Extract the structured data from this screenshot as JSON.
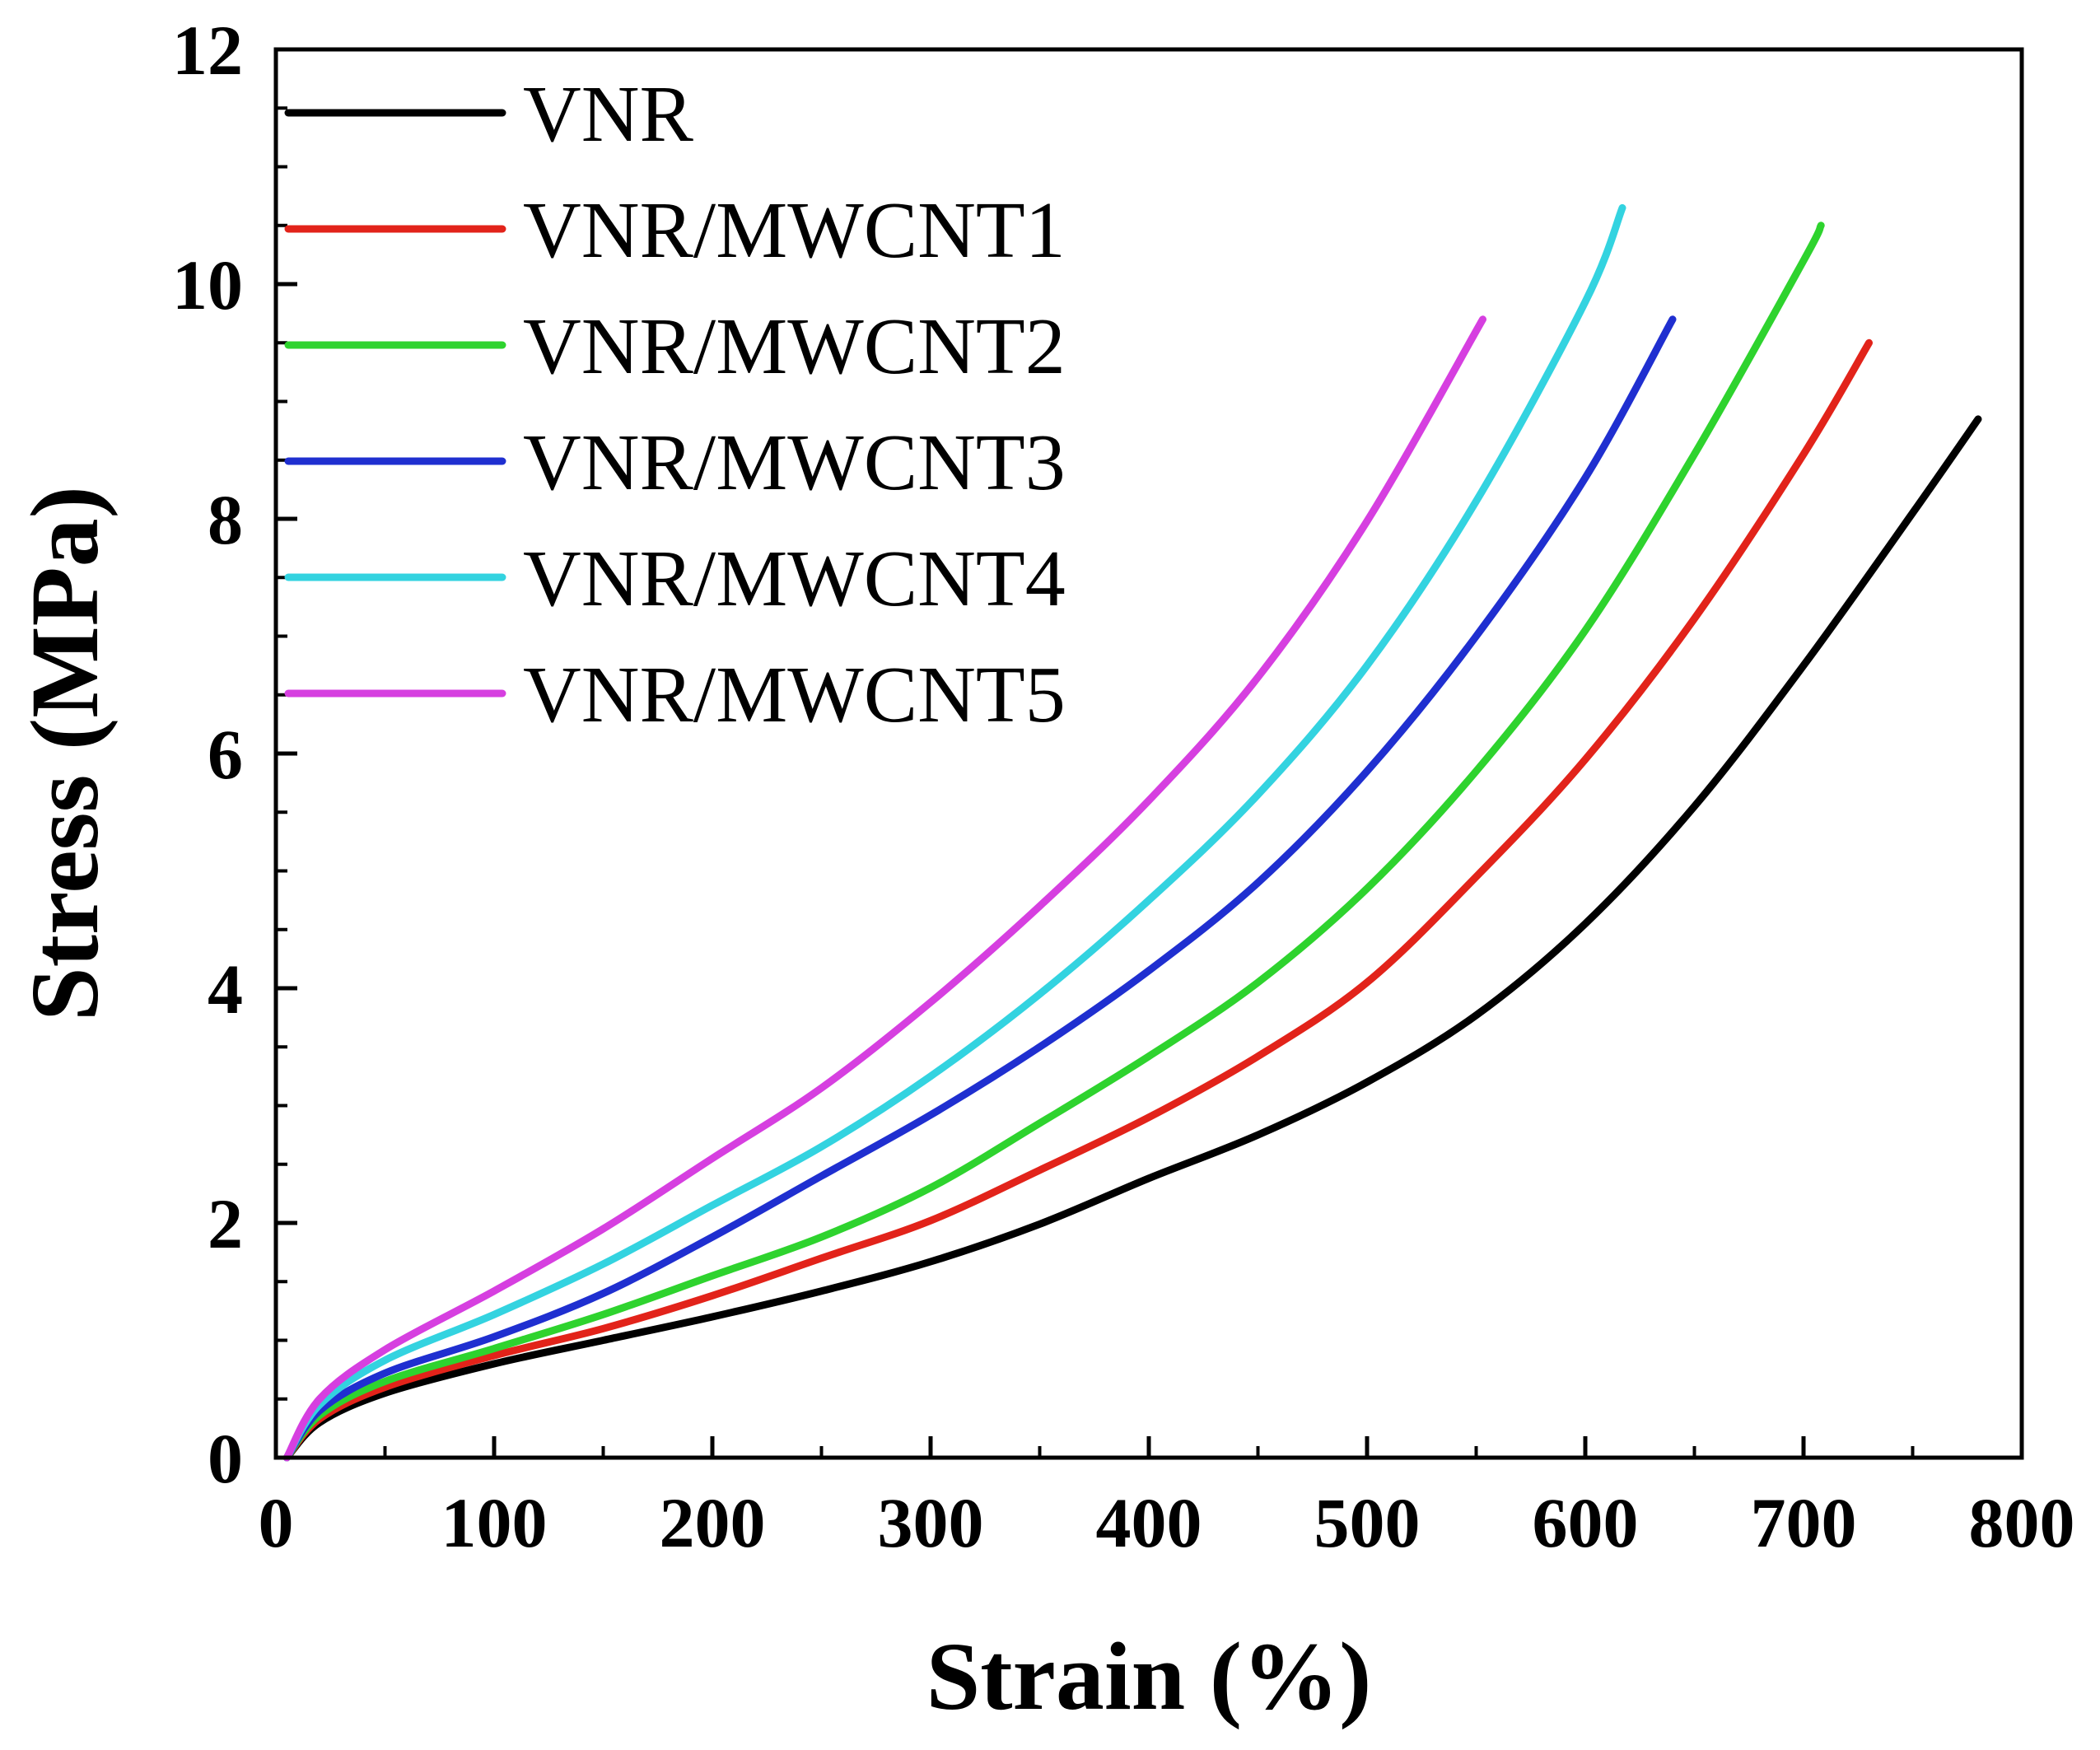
{
  "chart_data": {
    "type": "line",
    "title": "",
    "xlabel": "Strain (%)",
    "ylabel": "Stress (MPa)",
    "xlim": [
      0,
      800
    ],
    "ylim": [
      0,
      12
    ],
    "xticks": [
      0,
      100,
      200,
      300,
      400,
      500,
      600,
      700,
      800
    ],
    "yticks": [
      0,
      2,
      4,
      6,
      8,
      10,
      12
    ],
    "grid": false,
    "legend_position": "top-left",
    "series": [
      {
        "name": "VNR",
        "color": "#000000",
        "x": [
          5,
          20,
          50,
          100,
          150,
          200,
          250,
          300,
          350,
          400,
          450,
          500,
          550,
          600,
          650,
          700,
          750,
          780
        ],
        "y": [
          0,
          0.3,
          0.55,
          0.8,
          1.0,
          1.2,
          1.42,
          1.67,
          1.99,
          2.38,
          2.75,
          3.2,
          3.77,
          4.55,
          5.55,
          6.75,
          8.05,
          8.85
        ]
      },
      {
        "name": "VNR/MWCNT1",
        "color": "#e2231a",
        "x": [
          5,
          20,
          50,
          100,
          150,
          200,
          250,
          300,
          350,
          400,
          450,
          500,
          550,
          600,
          650,
          700,
          730
        ],
        "y": [
          0,
          0.33,
          0.6,
          0.87,
          1.1,
          1.38,
          1.7,
          2.02,
          2.45,
          2.9,
          3.42,
          4.05,
          4.95,
          5.95,
          7.15,
          8.55,
          9.5
        ]
      },
      {
        "name": "VNR/MWCNT2",
        "color": "#2ed32e",
        "x": [
          5,
          20,
          50,
          100,
          150,
          200,
          250,
          300,
          350,
          400,
          450,
          500,
          550,
          600,
          650,
          700,
          708
        ],
        "y": [
          0,
          0.36,
          0.65,
          0.93,
          1.22,
          1.55,
          1.88,
          2.3,
          2.85,
          3.42,
          4.05,
          4.85,
          5.85,
          7.05,
          8.55,
          10.2,
          10.5
        ]
      },
      {
        "name": "VNR/MWCNT3",
        "color": "#1f2fd0",
        "x": [
          5,
          20,
          50,
          100,
          150,
          200,
          250,
          300,
          350,
          400,
          450,
          500,
          550,
          600,
          640
        ],
        "y": [
          0,
          0.4,
          0.72,
          1.03,
          1.4,
          1.88,
          2.4,
          2.92,
          3.5,
          4.15,
          4.9,
          5.85,
          7.0,
          8.35,
          9.7
        ]
      },
      {
        "name": "VNR/MWCNT4",
        "color": "#33d3e0",
        "x": [
          5,
          20,
          50,
          100,
          150,
          200,
          250,
          300,
          350,
          400,
          450,
          500,
          550,
          600,
          617
        ],
        "y": [
          0,
          0.45,
          0.83,
          1.22,
          1.65,
          2.15,
          2.65,
          3.25,
          3.95,
          4.75,
          5.65,
          6.75,
          8.15,
          9.85,
          10.65
        ]
      },
      {
        "name": "VNR/MWCNT5",
        "color": "#d63fe0",
        "x": [
          5,
          20,
          50,
          100,
          150,
          200,
          250,
          300,
          350,
          400,
          450,
          500,
          553
        ],
        "y": [
          0,
          0.5,
          0.92,
          1.42,
          1.95,
          2.55,
          3.15,
          3.88,
          4.7,
          5.6,
          6.65,
          7.98,
          9.7
        ]
      }
    ]
  }
}
